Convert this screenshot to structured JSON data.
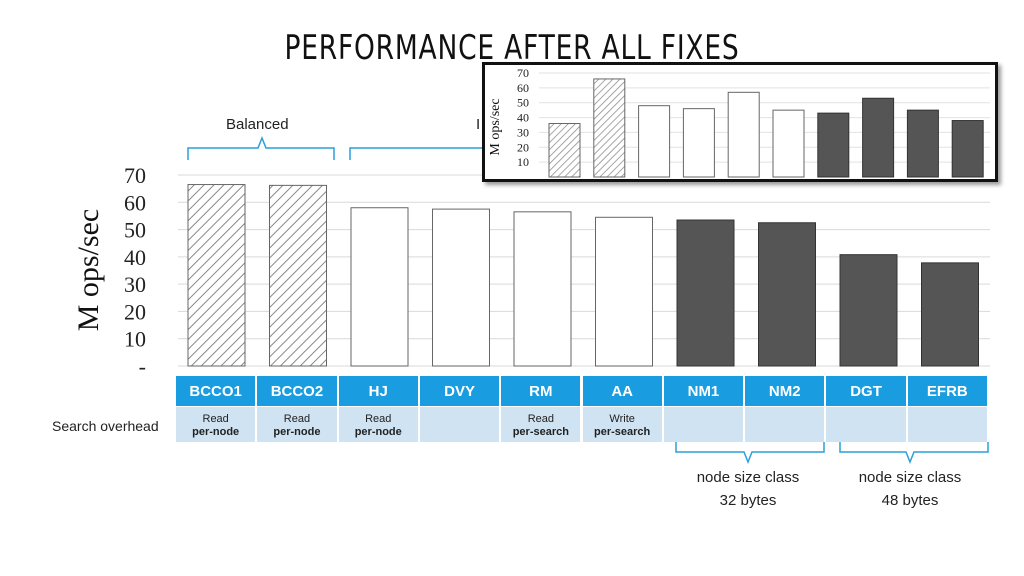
{
  "title": "PERFORMANCE AFTER ALL FIXES",
  "groups": {
    "balanced": "Balanced",
    "partial_label": "I"
  },
  "row_label": "Search overhead",
  "columns": [
    {
      "name": "BCCO1",
      "line1": "Read",
      "line2": "per-node"
    },
    {
      "name": "BCCO2",
      "line1": "Read",
      "line2": "per-node"
    },
    {
      "name": "HJ",
      "line1": "Read",
      "line2": "per-node"
    },
    {
      "name": "DVY",
      "line1": "",
      "line2": ""
    },
    {
      "name": "RM",
      "line1": "Read",
      "line2": "per-search"
    },
    {
      "name": "AA",
      "line1": "Write",
      "line2": "per-search"
    },
    {
      "name": "NM1",
      "line1": "",
      "line2": ""
    },
    {
      "name": "NM2",
      "line1": "",
      "line2": ""
    },
    {
      "name": "DGT",
      "line1": "",
      "line2": ""
    },
    {
      "name": "EFRB",
      "line1": "",
      "line2": ""
    }
  ],
  "notes": {
    "class32_line1": "node size class",
    "class32_line2": "32 bytes",
    "class48_line1": "node size class",
    "class48_line2": "48 bytes"
  },
  "colors": {
    "header_blue": "#1a9de0",
    "subrow_blue": "#cfe3f3",
    "brace_blue": "#2aa0d8",
    "dark_bar": "#555555"
  },
  "chart_data": [
    {
      "type": "bar",
      "ylabel": "M ops/sec",
      "ylim": [
        0,
        70
      ],
      "yticks": [
        "-",
        "10",
        "20",
        "30",
        "40",
        "50",
        "60",
        "70"
      ],
      "categories": [
        "BCCO1",
        "BCCO2",
        "HJ",
        "DVY",
        "RM",
        "AA",
        "NM1",
        "NM2",
        "DGT",
        "EFRB"
      ],
      "values": [
        66.5,
        66.2,
        58,
        57.5,
        56.5,
        54.5,
        53.5,
        52.5,
        40.8,
        37.8
      ],
      "styles": [
        "hatched",
        "hatched",
        "white",
        "white",
        "white",
        "white",
        "dark",
        "dark",
        "dark",
        "dark"
      ],
      "grid": true
    },
    {
      "type": "bar",
      "ylabel": "M ops/sec",
      "ylim": [
        0,
        70
      ],
      "yticks": [
        "10",
        "20",
        "30",
        "40",
        "50",
        "60",
        "70"
      ],
      "values": [
        36,
        66,
        48,
        46,
        57,
        45,
        43,
        53,
        45,
        38
      ],
      "styles": [
        "hatched",
        "hatched",
        "white",
        "white",
        "white",
        "white",
        "dark",
        "dark",
        "dark",
        "dark"
      ],
      "grid": true
    }
  ]
}
